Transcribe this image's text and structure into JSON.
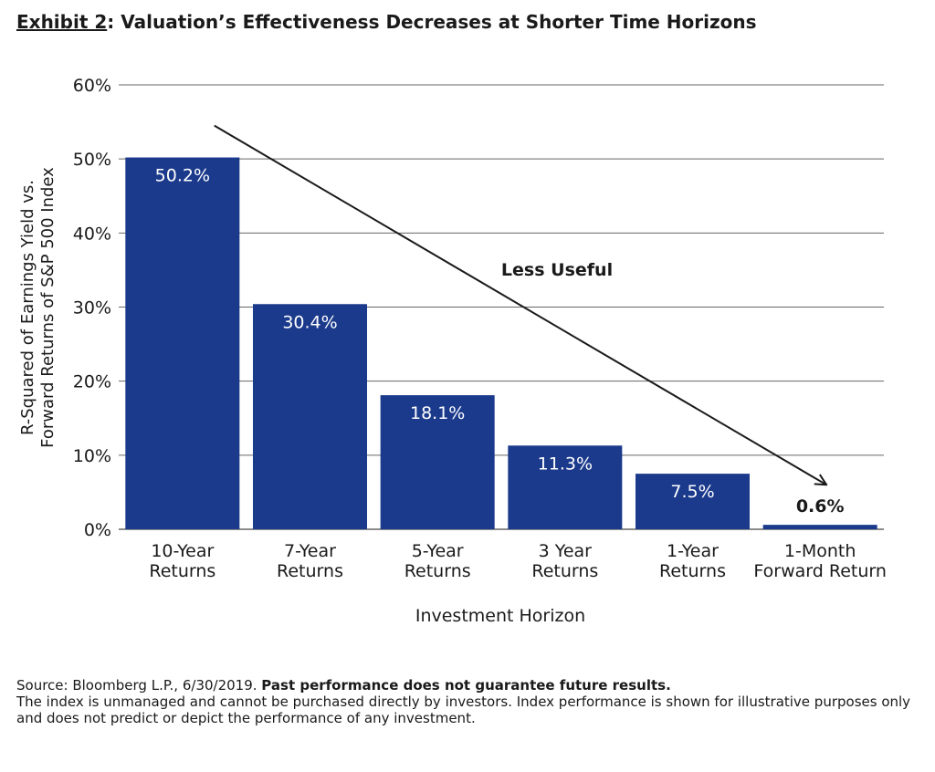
{
  "title": {
    "lead": "Exhibit 2",
    "rest": ": Valuation’s Effectiveness Decreases at Shorter Time Horizons"
  },
  "colors": {
    "bar": "#1b3a8c",
    "grid": "#666666",
    "text": "#1a1a1a",
    "label_in_bar": "#ffffff"
  },
  "chart_data": {
    "type": "bar",
    "categories": [
      [
        "10-Year",
        "Returns"
      ],
      [
        "7-Year",
        "Returns"
      ],
      [
        "5-Year",
        "Returns"
      ],
      [
        "3 Year",
        "Returns"
      ],
      [
        "1-Year",
        "Returns"
      ],
      [
        "1-Month",
        "Forward Return"
      ]
    ],
    "values": [
      50.2,
      30.4,
      18.1,
      11.3,
      7.5,
      0.6
    ],
    "value_labels": [
      "50.2%",
      "30.4%",
      "18.1%",
      "11.3%",
      "7.5%",
      "0.6%"
    ],
    "ylim": [
      0,
      60
    ],
    "yticks": [
      0,
      10,
      20,
      30,
      40,
      50,
      60
    ],
    "ytick_labels": [
      "0%",
      "10%",
      "20%",
      "30%",
      "40%",
      "50%",
      "60%"
    ],
    "ylabel": [
      "R-Squared of Earnings Yield vs.",
      "Forward Returns of S&P 500 Index"
    ],
    "xlabel": "Investment Horizon",
    "grid": true,
    "annotation": {
      "text": "Less Useful",
      "arrow_from": [
        0.75,
        54.5
      ],
      "arrow_to": [
        5.55,
        6.0
      ]
    }
  },
  "source": {
    "prefix": "Source: Bloomberg L.P., 6/30/2019. ",
    "bold": "Past performance does not guarantee future results.",
    "body": "The index is unmanaged and cannot be purchased directly by investors. Index performance is shown for illustrative purposes only and does not predict or depict the performance of any investment."
  }
}
